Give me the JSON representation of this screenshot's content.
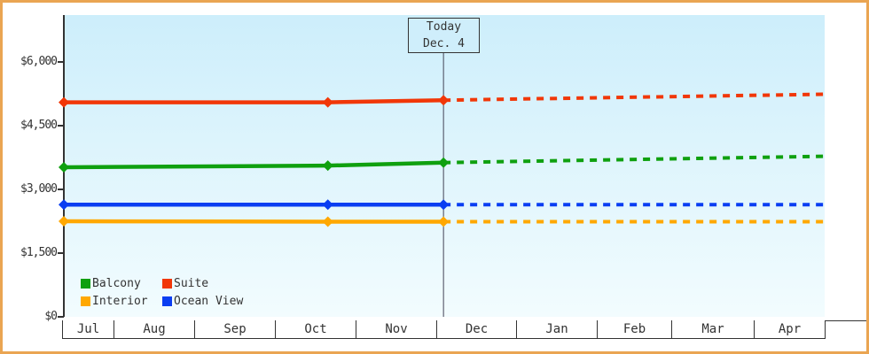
{
  "window": {
    "frame_border_color": "#eaa552",
    "background_color": "#ffffff",
    "text_color": "#333333",
    "plot_gradient_top": "#cdeefb",
    "plot_gradient_bottom": "#f2fcfe"
  },
  "chart_data": {
    "type": "line",
    "description_visible_text_only": "Price history lines for four cabin categories, solid before today and dotted (forecast) after today",
    "y_axis": {
      "ticks": [
        {
          "label": "$0",
          "value": 0
        },
        {
          "label": "$1,500",
          "value": 1500
        },
        {
          "label": "$3,000",
          "value": 3000
        },
        {
          "label": "$4,500",
          "value": 4500
        },
        {
          "label": "$6,000",
          "value": 6000
        }
      ],
      "max_value": 6000
    },
    "x_axis": {
      "months": [
        "Jul",
        "Aug",
        "Sep",
        "Oct",
        "Nov",
        "Dec",
        "Jan",
        "Feb",
        "Mar",
        "Apr"
      ]
    },
    "today_marker": {
      "line1": "Today",
      "line2": "Dec. 4",
      "x_frac": 0.499
    },
    "series": [
      {
        "name": "Suite",
        "color": "#f13708",
        "solid_points": [
          {
            "x_frac": 0,
            "value": 5050
          },
          {
            "x_frac": 0.347,
            "value": 5050
          },
          {
            "x_frac": 0.499,
            "value": 5100
          }
        ],
        "dotted_points": [
          {
            "x_frac": 0.499,
            "value": 5100
          },
          {
            "x_frac": 1,
            "value": 5240
          }
        ]
      },
      {
        "name": "Balcony",
        "color": "#0fa00f",
        "solid_points": [
          {
            "x_frac": 0,
            "value": 3520
          },
          {
            "x_frac": 0.347,
            "value": 3560
          },
          {
            "x_frac": 0.499,
            "value": 3630
          }
        ],
        "dotted_points": [
          {
            "x_frac": 0.499,
            "value": 3630
          },
          {
            "x_frac": 1,
            "value": 3780
          }
        ]
      },
      {
        "name": "Ocean View",
        "color": "#0a3ef2",
        "solid_points": [
          {
            "x_frac": 0,
            "value": 2640
          },
          {
            "x_frac": 0.347,
            "value": 2640
          },
          {
            "x_frac": 0.499,
            "value": 2640
          }
        ],
        "dotted_points": [
          {
            "x_frac": 0.499,
            "value": 2640
          },
          {
            "x_frac": 1,
            "value": 2640
          }
        ]
      },
      {
        "name": "Interior",
        "color": "#ffa800",
        "solid_points": [
          {
            "x_frac": 0,
            "value": 2250
          },
          {
            "x_frac": 0.347,
            "value": 2240
          },
          {
            "x_frac": 0.499,
            "value": 2240
          }
        ],
        "dotted_points": [
          {
            "x_frac": 0.499,
            "value": 2240
          },
          {
            "x_frac": 1,
            "value": 2240
          }
        ]
      }
    ],
    "legend": {
      "rows": [
        [
          "Balcony",
          "Suite"
        ],
        [
          "Interior",
          "Ocean View"
        ]
      ]
    }
  }
}
